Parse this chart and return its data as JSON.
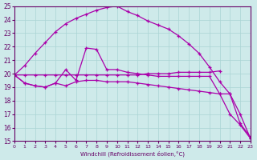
{
  "xlabel": "Windchill (Refroidissement éolien,°C)",
  "bg_color": "#ceeaea",
  "grid_color": "#aad4d4",
  "line_color": "#aa00aa",
  "ylim": [
    15,
    25
  ],
  "xlim": [
    0,
    23
  ],
  "yticks": [
    15,
    16,
    17,
    18,
    19,
    20,
    21,
    22,
    23,
    24,
    25
  ],
  "xticks": [
    0,
    1,
    2,
    3,
    4,
    5,
    6,
    7,
    8,
    9,
    10,
    11,
    12,
    13,
    14,
    15,
    16,
    17,
    18,
    19,
    20,
    21,
    22,
    23
  ],
  "series": [
    {
      "x": [
        0,
        1,
        2,
        3,
        4,
        5,
        6,
        7,
        8,
        9,
        10,
        11,
        12,
        13,
        14,
        15,
        16,
        17,
        18,
        19,
        20,
        21,
        22,
        23
      ],
      "y": [
        19.9,
        20.6,
        21.5,
        22.3,
        23.1,
        23.7,
        24.1,
        24.4,
        24.7,
        24.9,
        25.0,
        24.6,
        24.3,
        23.9,
        23.6,
        23.3,
        22.8,
        22.2,
        21.5,
        20.5,
        19.4,
        18.5,
        17.0,
        15.2
      ]
    },
    {
      "x": [
        0,
        1,
        2,
        3,
        4,
        5,
        6,
        7,
        8,
        9,
        10,
        11,
        12,
        13,
        14,
        15,
        16,
        17,
        18,
        19,
        20
      ],
      "y": [
        19.9,
        19.9,
        19.9,
        19.9,
        19.9,
        19.9,
        19.9,
        19.9,
        19.9,
        19.9,
        19.9,
        19.9,
        19.9,
        20.0,
        20.0,
        20.0,
        20.1,
        20.1,
        20.1,
        20.1,
        20.2
      ]
    },
    {
      "x": [
        0,
        1,
        2,
        3,
        4,
        5,
        6,
        7,
        8,
        9,
        10,
        11,
        12,
        13,
        14,
        15,
        16,
        17,
        18,
        19,
        20,
        21,
        22,
        23
      ],
      "y": [
        19.9,
        19.3,
        19.1,
        19.0,
        19.3,
        20.3,
        19.5,
        21.9,
        21.8,
        20.3,
        20.3,
        20.1,
        20.0,
        19.9,
        19.8,
        19.8,
        19.8,
        19.8,
        19.8,
        19.8,
        18.5,
        18.5,
        16.3,
        15.3
      ]
    },
    {
      "x": [
        0,
        1,
        2,
        3,
        4,
        5,
        6,
        7,
        8,
        9,
        10,
        11,
        12,
        13,
        14,
        15,
        16,
        17,
        18,
        19,
        20,
        21,
        22,
        23
      ],
      "y": [
        19.9,
        19.3,
        19.1,
        19.0,
        19.3,
        19.1,
        19.4,
        19.5,
        19.5,
        19.4,
        19.4,
        19.4,
        19.3,
        19.2,
        19.1,
        19.0,
        18.9,
        18.8,
        18.7,
        18.6,
        18.5,
        17.0,
        16.2,
        15.2
      ]
    }
  ]
}
